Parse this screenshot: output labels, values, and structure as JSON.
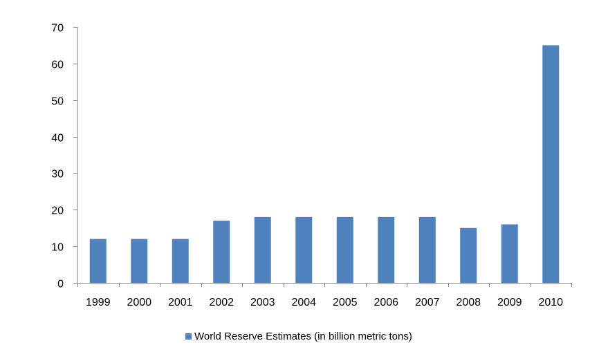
{
  "chart_data": {
    "type": "bar",
    "title": "",
    "xlabel": "",
    "ylabel": "",
    "categories": [
      "1999",
      "2000",
      "2001",
      "2002",
      "2003",
      "2004",
      "2005",
      "2006",
      "2007",
      "2008",
      "2009",
      "2010"
    ],
    "series": [
      {
        "name": "World Reserve Estimates (in billion metric tons)",
        "values": [
          12,
          12,
          12,
          17,
          18,
          18,
          18,
          18,
          18,
          15,
          16,
          65
        ],
        "color": "#4F81BD"
      }
    ],
    "ylim": [
      0,
      70
    ],
    "yticks": [
      "0",
      "10",
      "20",
      "30",
      "40",
      "50",
      "60",
      "70"
    ],
    "grid": false,
    "legend_position": "bottom",
    "axis_color": "#868686"
  }
}
